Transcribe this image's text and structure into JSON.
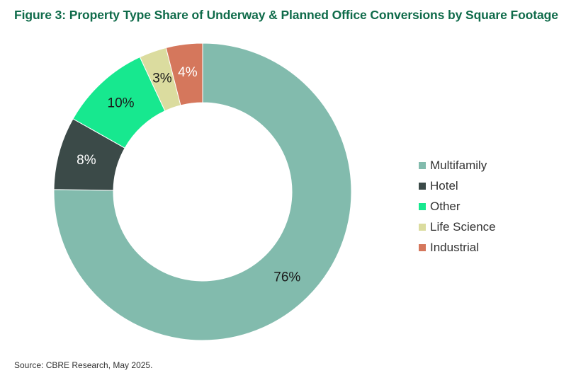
{
  "title": "Figure 3: Property Type Share of Underway & Planned Office Conversions by Square Footage",
  "source": "Source: CBRE Research, May 2025.",
  "chart_data": {
    "type": "pie",
    "style": "donut",
    "title": "Figure 3: Property Type Share of Underway & Planned Office Conversions by Square Footage",
    "legend_position": "right",
    "slices": [
      {
        "name": "Multifamily",
        "value": 76,
        "label": "76%",
        "color": "#82bbad",
        "label_color": "#1a1a1a"
      },
      {
        "name": "Hotel",
        "value": 8,
        "label": "8%",
        "color": "#3b4a48",
        "label_color": "#ffffff"
      },
      {
        "name": "Other",
        "value": 10,
        "label": "10%",
        "color": "#17e88f",
        "label_color": "#1a1a1a"
      },
      {
        "name": "Life Science",
        "value": 3,
        "label": "3%",
        "color": "#dbdc9f",
        "label_color": "#1a1a1a"
      },
      {
        "name": "Industrial",
        "value": 4,
        "label": "4%",
        "color": "#d5775c",
        "label_color": "#ffffff"
      }
    ]
  }
}
